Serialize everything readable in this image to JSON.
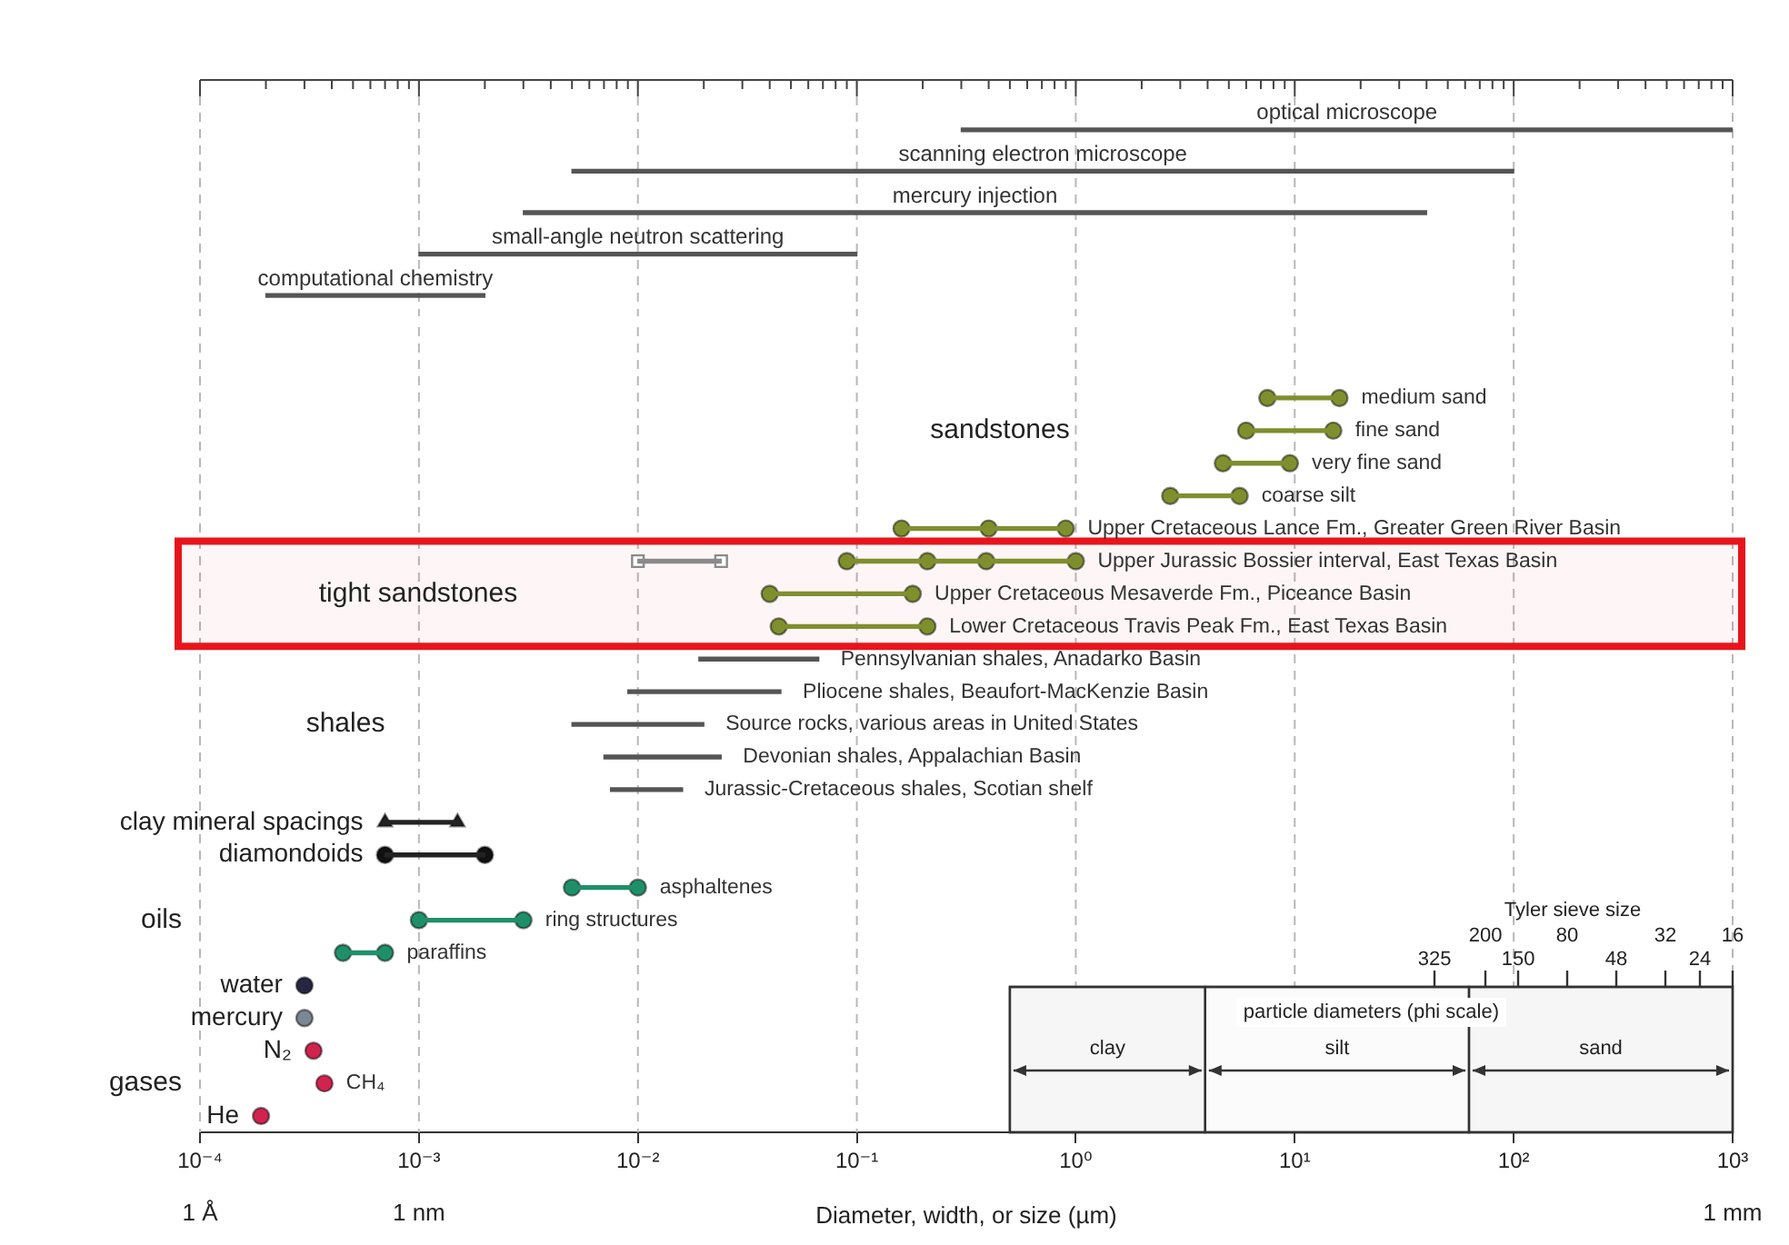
{
  "chart_data": [
    {
      "type": "bar",
      "orientation": "horizontal",
      "log": "x",
      "grid": "x",
      "tick_labels": false,
      "categories": [
        "optical microscope",
        "scanning electron microscope",
        "mercury injection",
        "small-angle neutron scattering",
        "computational chemistry"
      ],
      "base": [
        0.3,
        0.005,
        0.003,
        0.001,
        0.0002
      ],
      "values": [
        999.7,
        99.995,
        39.997,
        0.099,
        0.0018
      ],
      "color": "#555555",
      "xlim": [
        0.0001,
        1000
      ],
      "xticks": [
        {
          "value": 0.0001,
          "label": null
        },
        {
          "value": 0.0002,
          "label": null
        },
        {
          "value": 0.0003,
          "label": null
        },
        {
          "value": 0.0004,
          "label": null
        },
        {
          "value": 0.0005,
          "label": null
        },
        {
          "value": 0.0006,
          "label": null
        },
        {
          "value": 0.0007,
          "label": null
        },
        {
          "value": 0.0008,
          "label": null
        },
        {
          "value": 0.0009,
          "label": null
        },
        {
          "value": 0.001,
          "label": null
        },
        {
          "value": 0.002,
          "label": null
        },
        {
          "value": 0.003,
          "label": null
        },
        {
          "value": 0.004,
          "label": null
        },
        {
          "value": 0.005,
          "label": null
        },
        {
          "value": 0.006,
          "label": null
        },
        {
          "value": 0.007,
          "label": null
        },
        {
          "value": 0.008,
          "label": null
        },
        {
          "value": 0.009,
          "label": null
        },
        {
          "value": 0.01,
          "label": null
        },
        {
          "value": 0.02,
          "label": null
        },
        {
          "value": 0.03,
          "label": null
        },
        {
          "value": 0.04,
          "label": null
        },
        {
          "value": 0.05,
          "label": null
        },
        {
          "value": 0.06,
          "label": null
        },
        {
          "value": 0.07,
          "label": null
        },
        {
          "value": 0.08,
          "label": null
        },
        {
          "value": 0.09,
          "label": null
        },
        {
          "value": 0.1,
          "label": null
        },
        {
          "value": 0.2,
          "label": null
        },
        {
          "value": 0.3,
          "label": null
        },
        {
          "value": 0.4,
          "label": null
        },
        {
          "value": 0.5,
          "label": null
        },
        {
          "value": 0.6,
          "label": null
        },
        {
          "value": 0.7,
          "label": null
        },
        {
          "value": 0.8,
          "label": null
        },
        {
          "value": 0.9,
          "label": null
        },
        {
          "value": 1,
          "label": null
        },
        {
          "value": 2,
          "label": null
        },
        {
          "value": 3,
          "label": null
        },
        {
          "value": 4,
          "label": null
        },
        {
          "value": 5,
          "label": null
        },
        {
          "value": 6,
          "label": null
        },
        {
          "value": 7,
          "label": null
        },
        {
          "value": 8,
          "label": null
        },
        {
          "value": 9,
          "label": null
        },
        {
          "value": 10,
          "label": null
        },
        {
          "value": 20,
          "label": null
        },
        {
          "value": 30,
          "label": null
        },
        {
          "value": 40,
          "label": null
        },
        {
          "value": 50,
          "label": null
        },
        {
          "value": 60,
          "label": null
        },
        {
          "value": 70,
          "label": null
        },
        {
          "value": 80,
          "label": null
        },
        {
          "value": 90,
          "label": null
        },
        {
          "value": 100,
          "label": null
        },
        {
          "value": 200,
          "label": null
        },
        {
          "value": 300,
          "label": null
        },
        {
          "value": 400,
          "label": null
        },
        {
          "value": 500,
          "label": null
        },
        {
          "value": 600,
          "label": null
        },
        {
          "value": 700,
          "label": null
        },
        {
          "value": 800,
          "label": null
        },
        {
          "value": 900,
          "label": null
        },
        {
          "value": 1000,
          "label": null
        }
      ]
    },
    {
      "type": "bar",
      "orientation": "horizontal",
      "log": "x",
      "grid": "x",
      "marker": "circle",
      "categories": [
        "medium sand",
        "fine sand",
        "very fine sand",
        "coarse silt",
        "Upper Cretaceous Lance Fm., Greater Green River Basin",
        "Upper Jurassic Bossier interval, East Texas Basin",
        "Upper Cretaceous Mesaverde Fm., Piceance Basin",
        "Lower Cretaceous Travis Peak Fm., East Texas Basin",
        "Pennsylvanian shales, Anadarko Basin",
        "Pliocene shales, Beaufort-MacKenzie Basin",
        "Source rocks, various areas in United States",
        "Devonian shales, Appalachian Basin",
        "Jurassic-Cretaceous shales, Scotian shelf",
        "clay mineral spacings",
        "diamondoids",
        "asphaltenes",
        "ring structures",
        "paraffins",
        "water",
        "mercury",
        "N₂",
        "CH₄",
        "He"
      ],
      "series": [
        {
          "color": "#7f8f2e",
          "base": [
            7.5,
            6,
            4.7,
            2.7,
            0.16,
            0.09,
            0.04,
            0.044,
            null,
            null,
            null,
            null,
            null,
            null,
            null,
            null,
            null,
            null,
            null,
            null,
            null,
            null,
            null
          ],
          "values": [
            8.5,
            9,
            4.8,
            2.9,
            0.74,
            0.91,
            0.14,
            0.166,
            null,
            null,
            null,
            null,
            null,
            null,
            null,
            null,
            null,
            null,
            null,
            null,
            null,
            null,
            null
          ]
        },
        {
          "color": "#8a8a8a",
          "base": [
            null,
            null,
            null,
            null,
            null,
            0.01,
            null,
            null,
            null,
            null,
            null,
            null,
            null,
            null,
            null,
            null,
            null,
            null,
            null,
            null,
            null,
            null,
            null
          ],
          "values": [
            null,
            null,
            null,
            null,
            null,
            0.014,
            null,
            null,
            null,
            null,
            null,
            null,
            null,
            null,
            null,
            null,
            null,
            null,
            null,
            null,
            null,
            null,
            null
          ]
        },
        {
          "color": "#555555",
          "base": [
            null,
            null,
            null,
            null,
            null,
            null,
            null,
            null,
            0.019,
            0.009,
            0.005,
            0.007,
            0.0075,
            null,
            null,
            null,
            null,
            null,
            null,
            null,
            null,
            null,
            null
          ],
          "values": [
            null,
            null,
            null,
            null,
            null,
            null,
            null,
            null,
            0.048,
            0.036,
            0.015,
            0.017,
            0.0085,
            null,
            null,
            null,
            null,
            null,
            null,
            null,
            null,
            null,
            null
          ]
        },
        {
          "color": "#222222",
          "base": [
            null,
            null,
            null,
            null,
            null,
            null,
            null,
            null,
            null,
            null,
            null,
            null,
            null,
            0.0007,
            0.0007,
            null,
            null,
            null,
            null,
            null,
            null,
            null,
            null
          ],
          "values": [
            null,
            null,
            null,
            null,
            null,
            null,
            null,
            null,
            null,
            null,
            null,
            null,
            null,
            0.0008,
            0.0013,
            null,
            null,
            null,
            null,
            null,
            null,
            null,
            null
          ]
        },
        {
          "color": "#1f8f6a",
          "base": [
            null,
            null,
            null,
            null,
            null,
            null,
            null,
            null,
            null,
            null,
            null,
            null,
            null,
            null,
            null,
            0.005,
            0.001,
            0.00045,
            null,
            null,
            null,
            null,
            null
          ],
          "values": [
            null,
            null,
            null,
            null,
            null,
            null,
            null,
            null,
            null,
            null,
            null,
            null,
            null,
            null,
            null,
            0.005,
            0.002,
            0.00025,
            null,
            null,
            null,
            null,
            null
          ]
        },
        {
          "type": "scatter",
          "color": "#7f8f2e",
          "x": [
            "medium sand",
            "medium sand",
            "fine sand",
            "fine sand",
            "very fine sand",
            "very fine sand",
            "coarse silt",
            "coarse silt",
            "Upper Cretaceous Lance Fm., Greater Green River Basin",
            "Upper Cretaceous Lance Fm., Greater Green River Basin",
            "Upper Cretaceous Lance Fm., Greater Green River Basin",
            "Upper Jurassic Bossier interval, East Texas Basin",
            "Upper Jurassic Bossier interval, East Texas Basin",
            "Upper Jurassic Bossier interval, East Texas Basin",
            "Upper Jurassic Bossier interval, East Texas Basin",
            "Upper Cretaceous Mesaverde Fm., Piceance Basin",
            "Upper Cretaceous Mesaverde Fm., Piceance Basin",
            "Lower Cretaceous Travis Peak Fm., East Texas Basin",
            "Lower Cretaceous Travis Peak Fm., East Texas Basin"
          ],
          "values": [
            7.5,
            16,
            6,
            15,
            4.7,
            9.5,
            2.7,
            5.6,
            0.16,
            0.4,
            0.9,
            0.09,
            0.21,
            0.39,
            1,
            0.04,
            0.18,
            0.044,
            0.21
          ]
        },
        {
          "type": "scatter",
          "color": "#8a8a8a",
          "marker": "square",
          "x": [
            "Upper Jurassic Bossier interval, East Texas Basin",
            "Upper Jurassic Bossier interval, East Texas Basin"
          ],
          "values": [
            0.01,
            0.024
          ]
        },
        {
          "type": "scatter",
          "color": "#222222",
          "marker": "triangle",
          "x": [
            "clay mineral spacings",
            "clay mineral spacings"
          ],
          "values": [
            0.0007,
            0.0015
          ]
        },
        {
          "type": "scatter",
          "color": "#111111",
          "x": [
            "diamondoids",
            "diamondoids"
          ],
          "values": [
            0.0007,
            0.002
          ]
        },
        {
          "type": "scatter",
          "color": "#1f8f6a",
          "x": [
            "asphaltenes",
            "asphaltenes",
            "ring structures",
            "ring structures",
            "paraffins",
            "paraffins"
          ],
          "values": [
            0.005,
            0.01,
            0.001,
            0.003,
            0.00045,
            0.0007
          ]
        },
        {
          "type": "scatter",
          "color": "#262640",
          "x": [
            "water"
          ],
          "values": [
            0.0003
          ]
        },
        {
          "type": "scatter",
          "color": "#7a8794",
          "x": [
            "mercury"
          ],
          "values": [
            0.0003
          ]
        },
        {
          "type": "scatter",
          "color": "#d0234e",
          "x": [
            "N₂",
            "CH₄",
            "He"
          ],
          "values": [
            0.00033,
            0.00037,
            0.00019
          ]
        }
      ],
      "xlim": [
        0.0001,
        1000
      ],
      "xticks": [
        {
          "value": 0.0001,
          "label": "10⁻⁴"
        },
        {
          "value": 0.001,
          "label": "10⁻³"
        },
        {
          "value": 0.01,
          "label": "10⁻²"
        },
        {
          "value": 0.1,
          "label": "10⁻¹"
        },
        {
          "value": 1,
          "label": "10⁰"
        },
        {
          "value": 10,
          "label": "10¹"
        },
        {
          "value": 100,
          "label": "10²"
        },
        {
          "value": 1000,
          "label": "10³"
        }
      ],
      "xlabel": "Diameter, width, or size (µm)",
      "legend_title": "particle diameters (phi scale)",
      "bands": [
        {
          "axis": "x",
          "from": 0.5,
          "to": 3.9,
          "label": "clay"
        },
        {
          "axis": "x",
          "from": 3.9,
          "to": 62.5,
          "label": "silt"
        },
        {
          "axis": "x",
          "from": 62.5,
          "to": 1000,
          "label": "sand"
        },
        {
          "axis": "y",
          "from": "Upper Jurassic Bossier interval, East Texas Basin",
          "to": "Lower Cretaceous Travis Peak Fm., East Texas Basin",
          "label": "tight sandstones",
          "color": "#e8141c"
        }
      ],
      "annotations": [
        "sandstones",
        "shales",
        "oils",
        "gases",
        "1 Å",
        "1 nm",
        "1 mm",
        "Tyler sieve size",
        "325",
        "200",
        "150",
        "80",
        "48",
        "32",
        "24",
        "16"
      ]
    }
  ]
}
